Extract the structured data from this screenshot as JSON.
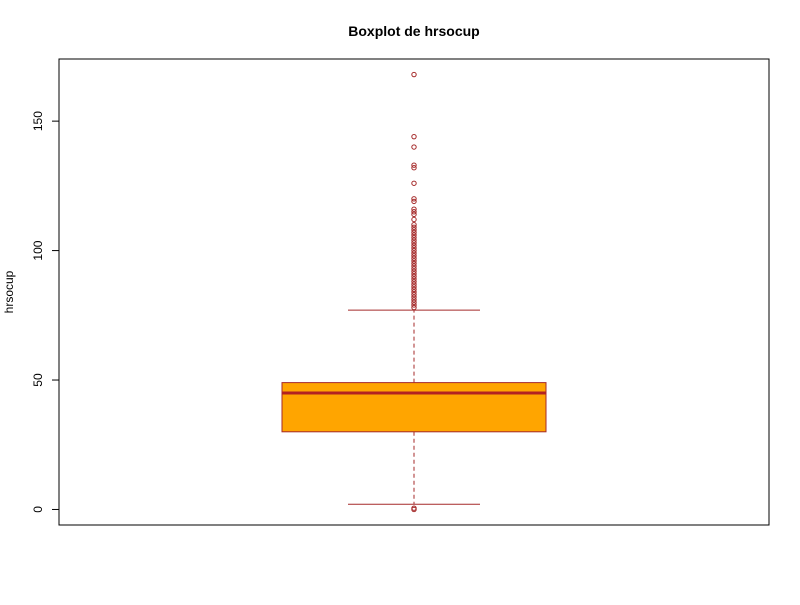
{
  "chart_data": {
    "type": "boxplot",
    "title": "Boxplot de hrsocup",
    "xlabel": "",
    "ylabel": "hrsocup",
    "ylim": [
      -6,
      174
    ],
    "yticks": [
      0,
      50,
      100,
      150
    ],
    "grid": false,
    "box": {
      "whisker_low": 2,
      "q1": 30,
      "median": 45,
      "q3": 49,
      "whisker_high": 77
    },
    "outliers": [
      0,
      0.5,
      78,
      79,
      80,
      81,
      82,
      83,
      84,
      85,
      86,
      87,
      88,
      89,
      90,
      91,
      92,
      93,
      94,
      95,
      96,
      97,
      98,
      99,
      100,
      101,
      102,
      103,
      104,
      105,
      106,
      107,
      108,
      109,
      110,
      112,
      114,
      115,
      116,
      119,
      120,
      126,
      132,
      133,
      140,
      144,
      168
    ],
    "colors": {
      "box_fill": "#FFA500",
      "box_border": "#A52A2A",
      "median_line": "#B22222",
      "whisker": "#A52A2A",
      "outlier": "#A52A2A",
      "frame": "#000000"
    }
  }
}
